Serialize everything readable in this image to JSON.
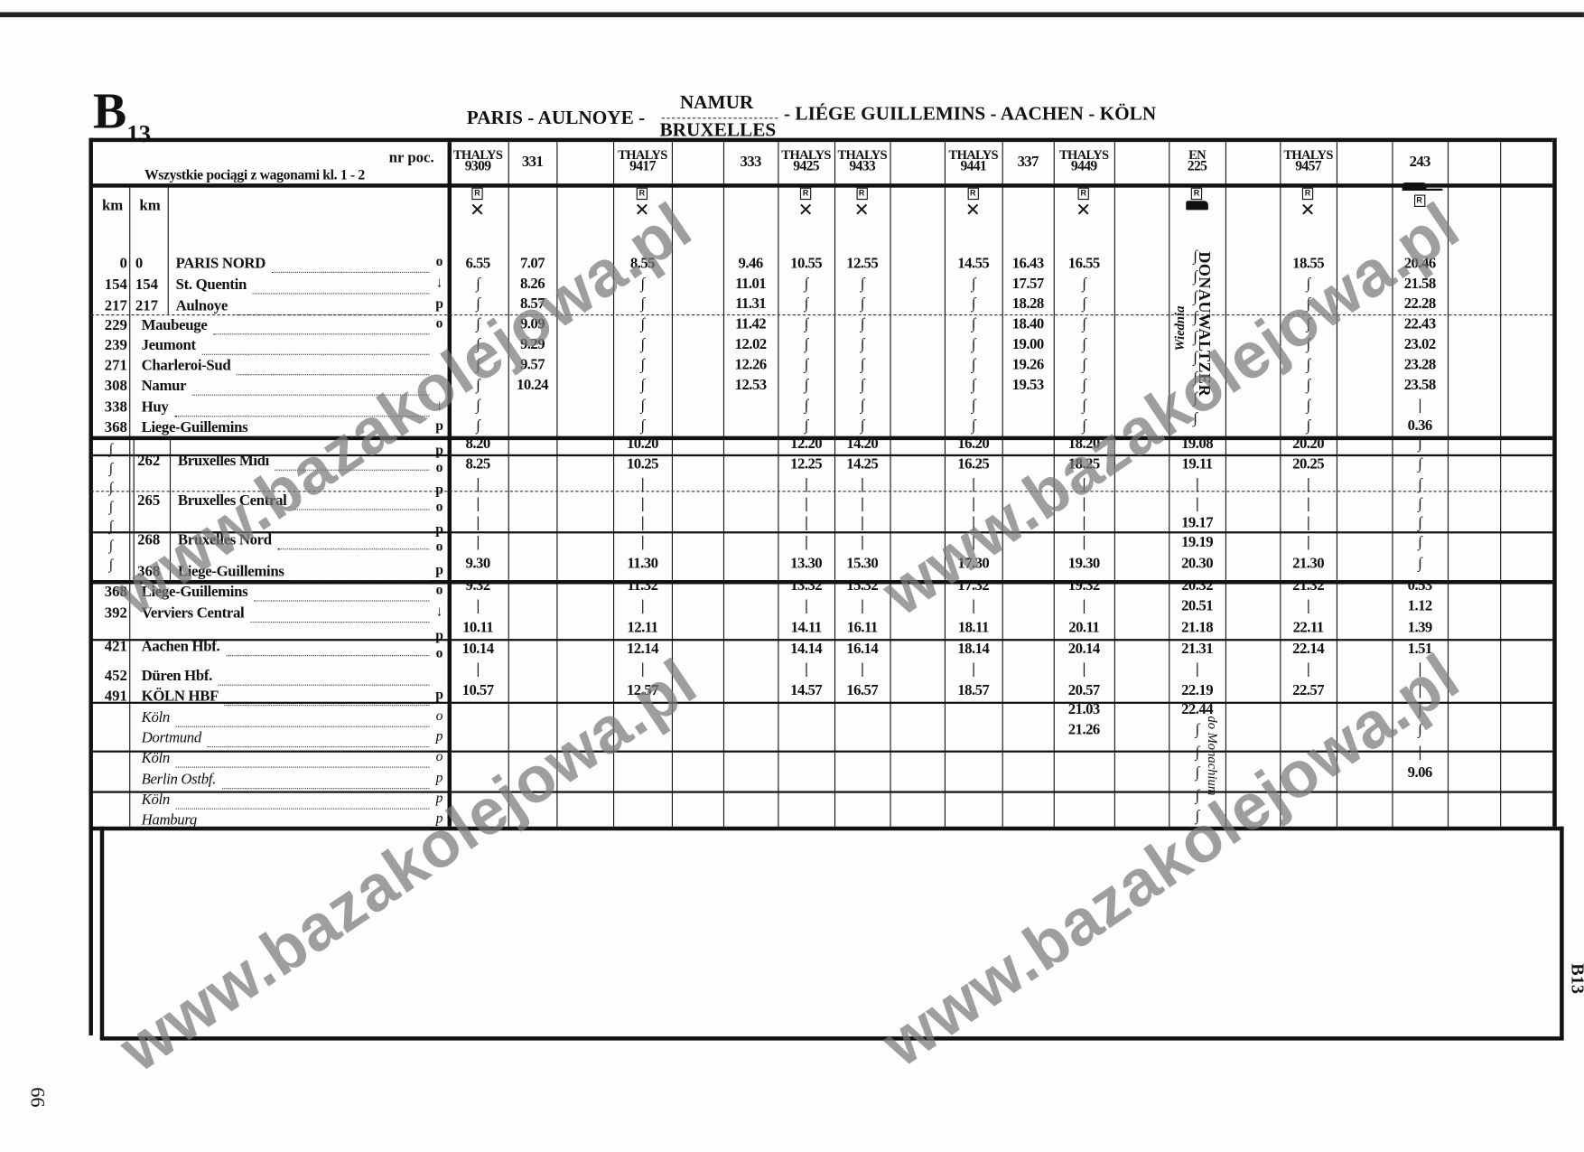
{
  "page": {
    "section_letter": "B",
    "section_number": "13",
    "route_left": "PARIS - AULNOYE -",
    "route_branch_top": "NAMUR",
    "route_branch_bottom": "BRUXELLES",
    "route_right": "- LIÉGE GUILLEMINS - AACHEN - KÖLN",
    "page_number": "66",
    "side_tab": "B13",
    "watermark": "www.bazakolejowa.pl"
  },
  "table": {
    "train_no_label": "nr poc.",
    "class_note": "Wszystkie pociągi z wagonami kl. 1 - 2",
    "km_label_1": "km",
    "km_label_2": "km",
    "stations": [
      {
        "km1": "0",
        "km2": "0",
        "name": "PARIS NORD",
        "mark": "o",
        "italic": false
      },
      {
        "km1": "154",
        "km2": "154",
        "name": "St. Quentin",
        "mark": "↓",
        "italic": false
      },
      {
        "km1": "217",
        "km2": "217",
        "name": "Aulnoye",
        "mark": "p",
        "italic": false
      },
      {
        "km1": "229",
        "km2": "",
        "name": "Maubeuge",
        "mark": "o",
        "italic": false
      },
      {
        "km1": "239",
        "km2": "",
        "name": "Jeumont",
        "mark": "",
        "italic": false
      },
      {
        "km1": "271",
        "km2": "",
        "name": "Charleroi-Sud",
        "mark": "",
        "italic": false
      },
      {
        "km1": "308",
        "km2": "",
        "name": "Namur",
        "mark": "",
        "italic": false
      },
      {
        "km1": "338",
        "km2": "",
        "name": "Huy",
        "mark": "↓",
        "italic": false
      },
      {
        "km1": "368",
        "km2": "",
        "name": "Liege-Guillemins",
        "mark": "p",
        "italic": false
      },
      {
        "km1": "",
        "km2": "262",
        "name": "Bruxelles Midi",
        "mark": "p o",
        "italic": false
      },
      {
        "km1": "",
        "km2": "265",
        "name": "Bruxelles Central",
        "mark": "p o",
        "italic": false
      },
      {
        "km1": "",
        "km2": "268",
        "name": "Bruxelles Nord",
        "mark": "p o",
        "italic": false
      },
      {
        "km1": "",
        "km2": "368",
        "name": "Liege-Guillemins",
        "mark": "p",
        "italic": false
      },
      {
        "km1": "368",
        "km2": "",
        "name": "Liege-Guillemins",
        "mark": "o",
        "italic": false
      },
      {
        "km1": "392",
        "km2": "",
        "name": "Verviers Central",
        "mark": "↓",
        "italic": false
      },
      {
        "km1": "421",
        "km2": "",
        "name": "Aachen Hbf.",
        "mark": "p o",
        "italic": false
      },
      {
        "km1": "452",
        "km2": "",
        "name": "Düren Hbf.",
        "mark": "",
        "italic": false
      },
      {
        "km1": "491",
        "km2": "",
        "name": "KÖLN HBF",
        "mark": "p",
        "italic": false
      },
      {
        "km1": "",
        "km2": "",
        "name": "Köln",
        "mark": "o",
        "italic": true
      },
      {
        "km1": "",
        "km2": "",
        "name": "Dortmund",
        "mark": "p",
        "italic": true
      },
      {
        "km1": "",
        "km2": "",
        "name": "Köln",
        "mark": "o",
        "italic": true
      },
      {
        "km1": "",
        "km2": "",
        "name": "Berlin Ostbf.",
        "mark": "p",
        "italic": true
      },
      {
        "km1": "",
        "km2": "",
        "name": "Köln",
        "mark": "p",
        "italic": true
      },
      {
        "km1": "",
        "km2": "",
        "name": "Hamburg",
        "mark": "p",
        "italic": true
      }
    ],
    "bypass_symbol": "∫",
    "columns": [
      {
        "type": "THALYS",
        "number": "9309",
        "icons": [
          "reservation-icon",
          "restaurant-icon"
        ],
        "times": [
          "6.55",
          "∫",
          "∫",
          "∫",
          "∫",
          "∫",
          "∫",
          "∫",
          "∫",
          "8.20",
          "8.25",
          "|",
          "|",
          "|",
          "|",
          "9.30",
          "9.32",
          "|",
          "10.11",
          "10.14",
          "|",
          "10.57",
          "",
          "",
          "",
          "",
          "",
          ""
        ]
      },
      {
        "type": "",
        "number": "331",
        "icons": [],
        "times": [
          "7.07",
          "8.26",
          "8.57",
          "9.09",
          "9.29",
          "9.57",
          "10.24",
          "",
          "",
          "",
          "",
          "",
          "",
          "",
          "",
          "",
          "",
          "",
          "",
          "",
          "",
          "",
          "",
          "",
          "",
          "",
          "",
          ""
        ]
      },
      {
        "type": "",
        "number": "",
        "icons": [],
        "times": []
      },
      {
        "type": "THALYS",
        "number": "9417",
        "icons": [
          "reservation-icon",
          "restaurant-icon"
        ],
        "times": [
          "8.55",
          "∫",
          "∫",
          "∫",
          "∫",
          "∫",
          "∫",
          "∫",
          "∫",
          "10.20",
          "10.25",
          "|",
          "|",
          "|",
          "|",
          "11.30",
          "11.32",
          "|",
          "12.11",
          "12.14",
          "|",
          "12.57",
          "",
          "",
          "",
          "",
          "",
          ""
        ]
      },
      {
        "type": "",
        "number": "",
        "icons": [],
        "times": []
      },
      {
        "type": "",
        "number": "333",
        "icons": [],
        "times": [
          "9.46",
          "11.01",
          "11.31",
          "11.42",
          "12.02",
          "12.26",
          "12.53",
          "",
          "",
          "",
          "",
          "",
          "",
          "",
          "",
          "",
          "",
          "",
          "",
          "",
          "",
          "",
          "",
          "",
          "",
          "",
          "",
          ""
        ]
      },
      {
        "type": "THALYS",
        "number": "9425",
        "icons": [
          "reservation-icon",
          "restaurant-icon"
        ],
        "times": [
          "10.55",
          "∫",
          "∫",
          "∫",
          "∫",
          "∫",
          "∫",
          "∫",
          "∫",
          "12.20",
          "12.25",
          "|",
          "|",
          "|",
          "|",
          "13.30",
          "13.32",
          "|",
          "14.11",
          "14.14",
          "|",
          "14.57",
          "",
          "",
          "",
          "",
          "",
          ""
        ]
      },
      {
        "type": "THALYS",
        "number": "9433",
        "icons": [
          "reservation-icon",
          "restaurant-icon"
        ],
        "times": [
          "12.55",
          "∫",
          "∫",
          "∫",
          "∫",
          "∫",
          "∫",
          "∫",
          "∫",
          "14.20",
          "14.25",
          "|",
          "|",
          "|",
          "|",
          "15.30",
          "15.32",
          "|",
          "16.11",
          "16.14",
          "|",
          "16.57",
          "",
          "",
          "",
          "",
          "",
          ""
        ]
      },
      {
        "type": "",
        "number": "",
        "icons": [],
        "times": []
      },
      {
        "type": "THALYS",
        "number": "9441",
        "icons": [
          "reservation-icon",
          "restaurant-icon"
        ],
        "times": [
          "14.55",
          "∫",
          "∫",
          "∫",
          "∫",
          "∫",
          "∫",
          "∫",
          "∫",
          "16.20",
          "16.25",
          "|",
          "|",
          "|",
          "|",
          "17.30",
          "17.32",
          "|",
          "18.11",
          "18.14",
          "|",
          "18.57",
          "",
          "",
          "",
          "",
          "",
          ""
        ]
      },
      {
        "type": "",
        "number": "337",
        "icons": [],
        "times": [
          "16.43",
          "17.57",
          "18.28",
          "18.40",
          "19.00",
          "19.26",
          "19.53",
          "",
          "",
          "",
          "",
          "",
          "",
          "",
          "",
          "",
          "",
          "",
          "",
          "",
          "",
          "",
          "",
          "",
          "",
          "",
          "",
          ""
        ]
      },
      {
        "type": "THALYS",
        "number": "9449",
        "icons": [
          "reservation-icon",
          "restaurant-icon"
        ],
        "times": [
          "16.55",
          "∫",
          "∫",
          "∫",
          "∫",
          "∫",
          "∫",
          "∫",
          "∫",
          "18.20",
          "18.25",
          "|",
          "|",
          "|",
          "|",
          "19.30",
          "19.32",
          "|",
          "20.11",
          "20.14",
          "|",
          "20.57",
          "21.03",
          "21.26",
          "",
          "",
          "",
          ""
        ]
      },
      {
        "type": "",
        "number": "",
        "icons": [],
        "times": []
      },
      {
        "type": "EN",
        "number": "225",
        "icons": [
          "reservation-icon",
          "sleeper-icon"
        ],
        "train_name": "DONAUWALTZER",
        "from_note": "Wiednia",
        "to_note": "do Monachium",
        "times": [
          "∫",
          "∫",
          "∫",
          "∫",
          "∫",
          "∫",
          "∫",
          "∫",
          "∫",
          "19.08",
          "19.11",
          "|",
          "|",
          "19.17",
          "19.19",
          "20.30",
          "20.32",
          "20.51",
          "21.18",
          "21.31",
          "|",
          "22.19",
          "22.44",
          "∫",
          "∫",
          "∫",
          "∫",
          "∫"
        ]
      },
      {
        "type": "",
        "number": "",
        "icons": [],
        "times": []
      },
      {
        "type": "THALYS",
        "number": "9457",
        "icons": [
          "reservation-icon",
          "restaurant-icon"
        ],
        "times": [
          "18.55",
          "∫",
          "∫",
          "∫",
          "∫",
          "∫",
          "∫",
          "∫",
          "∫",
          "20.20",
          "20.25",
          "|",
          "|",
          "|",
          "|",
          "21.30",
          "21.32",
          "|",
          "22.11",
          "22.14",
          "|",
          "22.57",
          "",
          "",
          "",
          "",
          "",
          ""
        ]
      },
      {
        "type": "",
        "number": "",
        "icons": [],
        "times": []
      },
      {
        "type": "",
        "number": "243",
        "icons": [
          "couchette-icon",
          "reservation-icon"
        ],
        "times": [
          "20.46",
          "21.58",
          "22.28",
          "22.43",
          "23.02",
          "23.28",
          "23.58",
          "|",
          "0.36",
          "∫",
          "∫",
          "∫",
          "∫",
          "∫",
          "∫",
          "∫",
          "0.53",
          "1.12",
          "1.39",
          "1.51",
          "|",
          "|",
          "∫",
          "∫",
          "|",
          "9.06",
          "",
          ""
        ]
      },
      {
        "type": "",
        "number": "",
        "icons": [],
        "times": []
      },
      {
        "type": "",
        "number": "",
        "icons": [],
        "times": []
      }
    ]
  }
}
